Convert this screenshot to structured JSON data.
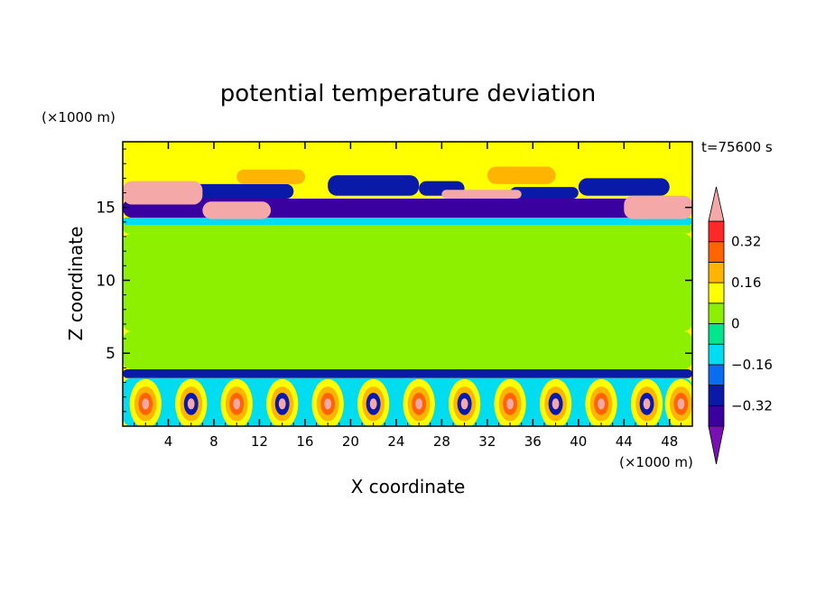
{
  "chart_data": {
    "type": "heatmap",
    "title": "potential temperature deviation",
    "xlabel": "X coordinate",
    "ylabel": "Z coordinate",
    "x_unit": "(×1000 m)",
    "y_unit": "(×1000 m)",
    "time_label": "t=75600 s",
    "xlim": [
      0,
      50
    ],
    "ylim": [
      0,
      19.5
    ],
    "x_ticks": [
      4,
      8,
      12,
      16,
      20,
      24,
      28,
      32,
      36,
      40,
      44,
      48
    ],
    "y_ticks": [
      5,
      10,
      15
    ],
    "colorbar": {
      "levels": [
        -0.4,
        -0.32,
        -0.24,
        -0.16,
        -0.08,
        0,
        0.08,
        0.16,
        0.24,
        0.32,
        0.4
      ],
      "colors": [
        "#7a10b4",
        "#3b00a0",
        "#0a1aa8",
        "#0a6cf0",
        "#00dcf0",
        "#00e68c",
        "#8cf000",
        "#ffff00",
        "#ffb400",
        "#ff6400",
        "#ff2828",
        "#f4a8a8"
      ],
      "tick_labels": [
        "0.32",
        "0.16",
        "0",
        "−0.16",
        "−0.32"
      ],
      "tick_values": [
        0.32,
        0.16,
        0,
        -0.16,
        -0.32
      ]
    },
    "field_regions": [
      {
        "x0": 0,
        "x1": 50,
        "y0": 6.5,
        "y1": 13.2,
        "value": 0.05
      },
      {
        "x0": 0,
        "x1": 50,
        "y0": 3.9,
        "y1": 6.5,
        "value": 0.0
      },
      {
        "x0": 14,
        "x1": 26,
        "y0": 6.0,
        "y1": 10.0,
        "value": 0.0
      },
      {
        "x0": 34,
        "x1": 48,
        "y0": 5.0,
        "y1": 9.0,
        "value": 0.0
      },
      {
        "x0": 0,
        "x1": 50,
        "y0": 13.2,
        "y1": 14.0,
        "value": 0.0
      },
      {
        "x0": 0,
        "x1": 50,
        "y0": 13.8,
        "y1": 14.3,
        "value": -0.12
      },
      {
        "x0": 0,
        "x1": 50,
        "y0": 14.3,
        "y1": 15.6,
        "value": -0.36
      },
      {
        "x0": 4,
        "x1": 15,
        "y0": 15.6,
        "y1": 16.6,
        "value": -0.3
      },
      {
        "x0": 18,
        "x1": 26,
        "y0": 15.8,
        "y1": 17.2,
        "value": -0.3
      },
      {
        "x0": 26,
        "x1": 30,
        "y0": 15.8,
        "y1": 16.8,
        "value": -0.28
      },
      {
        "x0": 34,
        "x1": 40,
        "y0": 15.6,
        "y1": 16.4,
        "value": -0.3
      },
      {
        "x0": 40,
        "x1": 48,
        "y0": 15.8,
        "y1": 17.0,
        "value": -0.3
      },
      {
        "x0": 0,
        "x1": 7,
        "y0": 15.2,
        "y1": 16.8,
        "value": 0.4
      },
      {
        "x0": 7,
        "x1": 13,
        "y0": 14.2,
        "y1": 15.4,
        "value": 0.4
      },
      {
        "x0": 28,
        "x1": 35,
        "y0": 15.6,
        "y1": 16.2,
        "value": 0.4
      },
      {
        "x0": 44,
        "x1": 50,
        "y0": 14.2,
        "y1": 15.8,
        "value": 0.4
      },
      {
        "x0": 10,
        "x1": 16,
        "y0": 16.6,
        "y1": 17.6,
        "value": 0.2
      },
      {
        "x0": 32,
        "x1": 38,
        "y0": 16.6,
        "y1": 17.8,
        "value": 0.2
      },
      {
        "x0": 0,
        "x1": 50,
        "y0": 3.3,
        "y1": 3.9,
        "value": -0.3
      },
      {
        "x0": 0,
        "x1": 50,
        "y0": 0,
        "y1": 3.3,
        "value": -0.12
      }
    ],
    "plumes": [
      2,
      6,
      10,
      14,
      18,
      22,
      26,
      30,
      34,
      38,
      42,
      46,
      49
    ]
  }
}
